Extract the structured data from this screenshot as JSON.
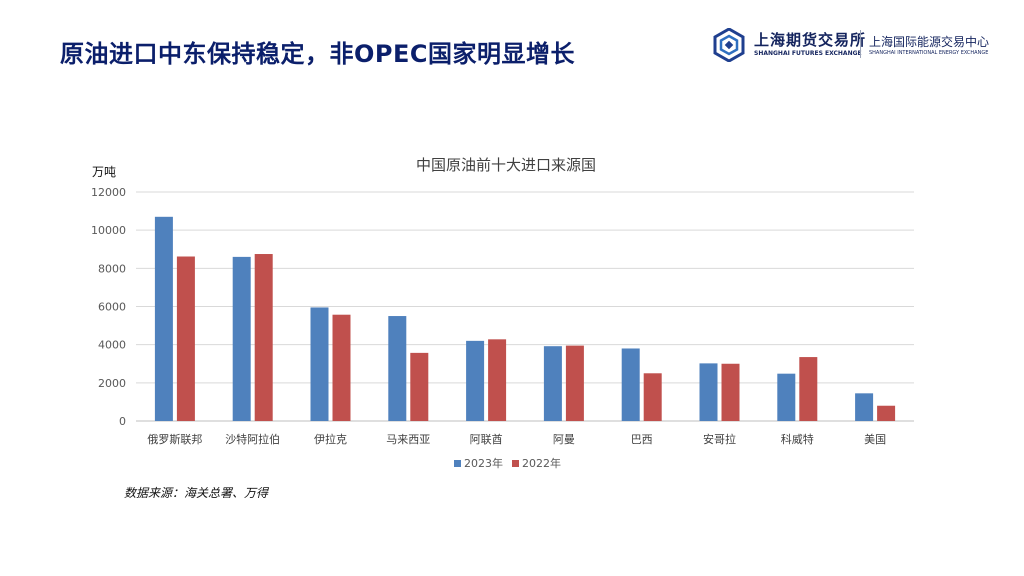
{
  "page": {
    "title": "原油进口中东保持稳定，非OPEC国家明显增长",
    "source": "数据来源：海关总署、万得"
  },
  "logo": {
    "cn": "上海期货交易所",
    "en": "SHANGHAI FUTURES EXCHANGE",
    "cn2": "上海国际能源交易中心",
    "en2": "SHANGHAI INTERNATIONAL ENERGY EXCHANGE"
  },
  "chart_data": {
    "type": "bar",
    "title": "中国原油前十大进口来源国",
    "ylabel": "万吨",
    "ylim": [
      0,
      12000
    ],
    "yticks": [
      0,
      2000,
      4000,
      6000,
      8000,
      10000,
      12000
    ],
    "ytick_labels": [
      "0",
      "2000",
      "4000",
      "6000",
      "8000",
      "10000",
      "12000"
    ],
    "grid": true,
    "legend_position": "bottom",
    "categories": [
      "俄罗斯联邦",
      "沙特阿拉伯",
      "伊拉克",
      "马来西亚",
      "阿联酋",
      "阿曼",
      "巴西",
      "安哥拉",
      "科威特",
      "美国"
    ],
    "series": [
      {
        "name": "2023年",
        "color": "#4f81bd",
        "values": [
          10700,
          8600,
          5950,
          5500,
          4200,
          3920,
          3800,
          3020,
          2480,
          1450
        ]
      },
      {
        "name": "2022年",
        "color": "#c0504d",
        "values": [
          8620,
          8750,
          5570,
          3570,
          4280,
          3950,
          2500,
          3000,
          3350,
          800
        ]
      }
    ]
  }
}
